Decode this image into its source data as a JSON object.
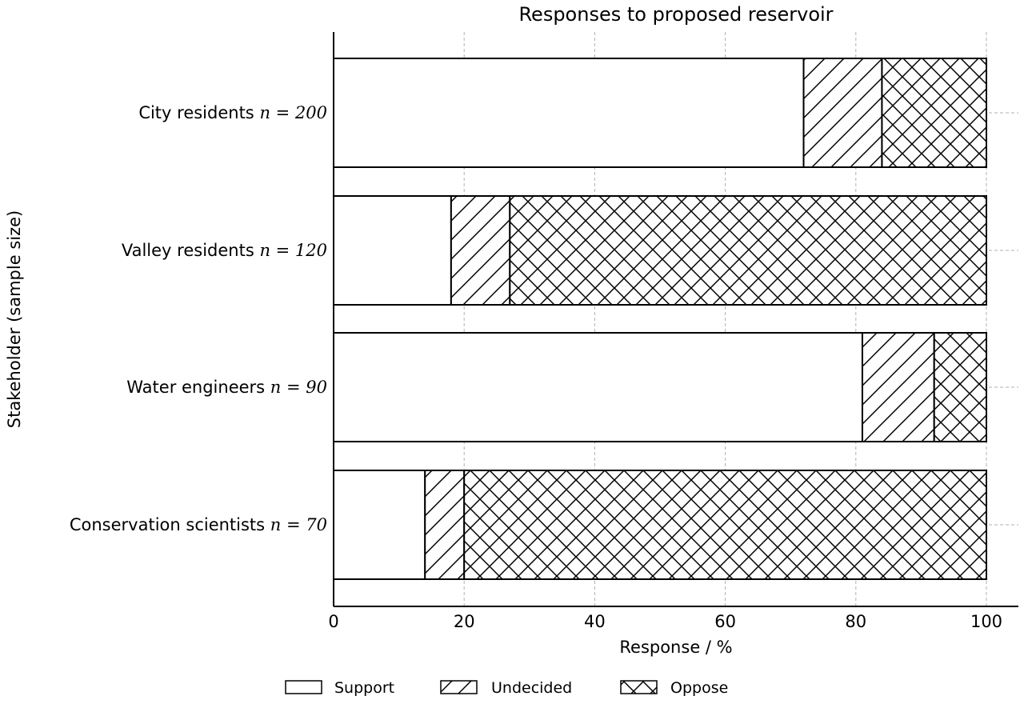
{
  "chart_data": {
    "type": "bar",
    "orientation": "horizontal",
    "stacked": true,
    "title": "Responses to proposed reservoir",
    "xlabel": "Response / %",
    "ylabel": "Stakeholder (sample size)",
    "xlim": [
      0,
      105
    ],
    "xticks": [
      0,
      20,
      40,
      60,
      80,
      100
    ],
    "categories": [
      {
        "name": "City residents",
        "n_label": "n = 200"
      },
      {
        "name": "Valley residents",
        "n_label": "n = 120"
      },
      {
        "name": "Water engineers",
        "n_label": "n = 90"
      },
      {
        "name": "Conservation scientists",
        "n_label": "n = 70"
      }
    ],
    "series": [
      {
        "name": "Support",
        "pattern": "none",
        "values": [
          72,
          18,
          81,
          14
        ]
      },
      {
        "name": "Undecided",
        "pattern": "diagonal",
        "values": [
          12,
          9,
          11,
          6
        ]
      },
      {
        "name": "Oppose",
        "pattern": "crosshatch",
        "values": [
          16,
          73,
          8,
          80
        ]
      }
    ],
    "grid": true,
    "legend_position": "bottom-center",
    "colors": {
      "fill": "#ffffff",
      "edge": "#000000",
      "grid": "#b0b0b0"
    }
  }
}
